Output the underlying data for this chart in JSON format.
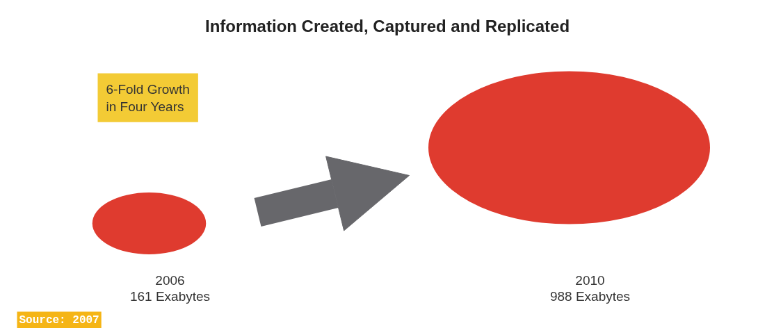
{
  "chart_data": {
    "type": "other",
    "title": "Information Created, Captured and Replicated",
    "categories": [
      "2006",
      "2010"
    ],
    "values": [
      161,
      988
    ],
    "value_labels": [
      "161 Exabytes",
      "988 Exabytes"
    ],
    "color": "#df3b2f",
    "annotations": [
      "6-Fold Growth\nin Four Years",
      "Source: 2007"
    ]
  }
}
